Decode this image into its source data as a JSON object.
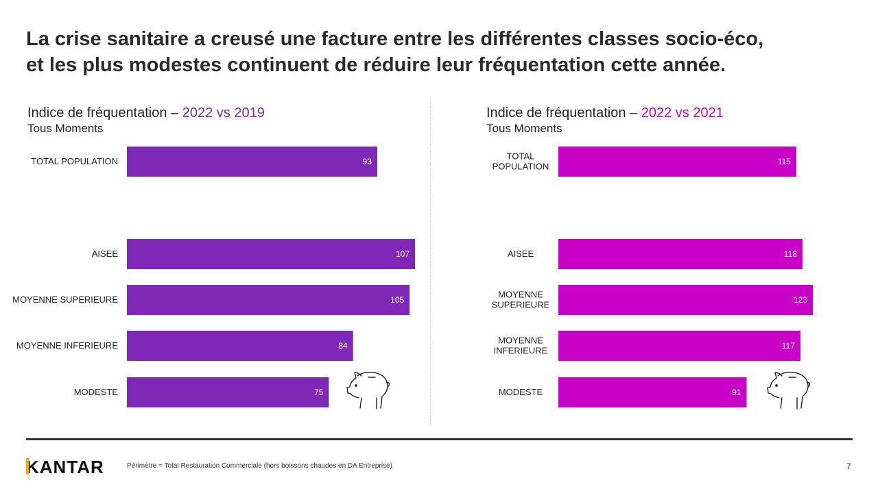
{
  "title_line1": "La crise sanitaire a creusé une facture entre les différentes classes socio-éco,",
  "title_line2": "et les plus modestes continuent de réduire leur fréquentation cette année.",
  "footer": {
    "logo": "KANTAR",
    "note": "Périmètre = Total Restauration Commerciale  (hors boissons chaudes en DA Entreprise)",
    "page_number": "7"
  },
  "chart_data": [
    {
      "type": "bar",
      "orientation": "horizontal",
      "title_prefix": "Indice de fréquentation – ",
      "title_highlight": "2022 vs 2019",
      "subtitle": "Tous Moments",
      "color": "#7f28b8",
      "highlight_color": "#7f28b8",
      "categories": [
        [
          "TOTAL POPULATION"
        ],
        [
          "AISEE"
        ],
        [
          "MOYENNE SUPERIEURE"
        ],
        [
          "MOYENNE INFERIEURE"
        ],
        [
          "MODESTE"
        ]
      ],
      "values": [
        93,
        107,
        105,
        84,
        75
      ],
      "xlim": [
        0,
        107
      ]
    },
    {
      "type": "bar",
      "orientation": "horizontal",
      "title_prefix": "Indice de fréquentation – ",
      "title_highlight": "2022 vs 2021",
      "subtitle": "Tous Moments",
      "color": "#c800c8",
      "highlight_color": "#c800c8",
      "categories": [
        [
          "TOTAL",
          "POPULATION"
        ],
        [
          "AISEE"
        ],
        [
          "MOYENNE",
          "SUPERIEURE"
        ],
        [
          "MOYENNE",
          "INFERIEURE"
        ],
        [
          "MODESTE"
        ]
      ],
      "values": [
        115,
        118,
        123,
        117,
        91
      ],
      "xlim": [
        0,
        123
      ]
    }
  ]
}
